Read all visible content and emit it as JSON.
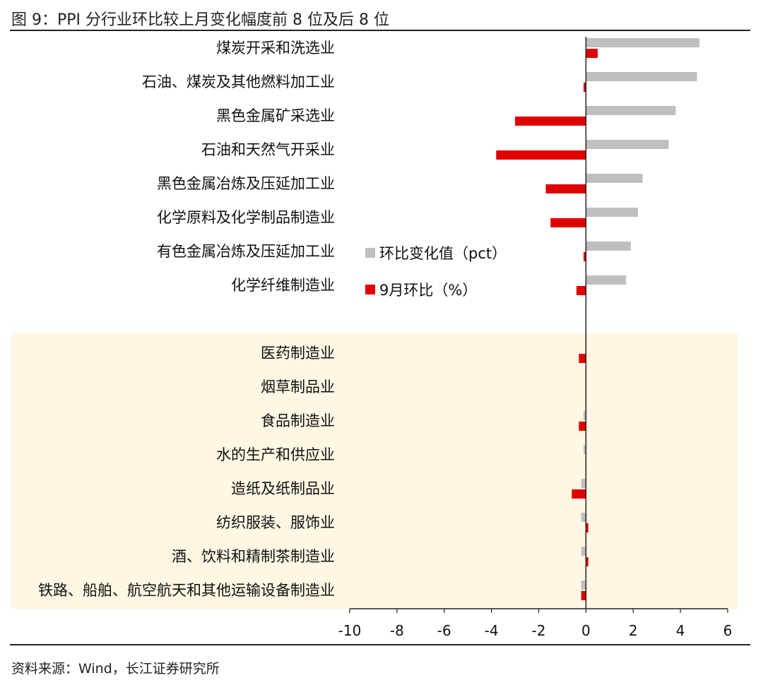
{
  "figure": {
    "title": "图 9：PPI 分行业环比较上月变化幅度前 8 位及后 8 位",
    "source": "资料来源：Wind，长江证券研究所"
  },
  "colors": {
    "series_change": "#bfbfbf",
    "series_mom": "#e00000",
    "highlight_bg": "#fff6e3",
    "axis": "#222222"
  },
  "chart_data": {
    "type": "bar",
    "orientation": "horizontal",
    "title": "PPI 分行业环比较上月变化幅度前 8 位及后 8 位",
    "categories": [
      "煤炭开采和洗选业",
      "石油、煤炭及其他燃料加工业",
      "黑色金属矿采选业",
      "石油和天然气开采业",
      "黑色金属冶炼及压延加工业",
      "化学原料及化学制品制造业",
      "有色金属冶炼及压延加工业",
      "化学纤维制造业",
      "医药制造业",
      "烟草制品业",
      "食品制造业",
      "水的生产和供应业",
      "造纸及纸制品业",
      "纺织服装、服饰业",
      "酒、饮料和精制茶制造业",
      "铁路、船舶、航空航天和其他运输设备制造业"
    ],
    "series": [
      {
        "name": "环比变化值（pct）",
        "values": [
          4.8,
          4.7,
          3.8,
          3.5,
          2.4,
          2.2,
          1.9,
          1.7,
          0.0,
          0.0,
          -0.1,
          -0.1,
          -0.2,
          -0.2,
          -0.2,
          -0.2
        ]
      },
      {
        "name": "9月环比（%）",
        "values": [
          0.5,
          -0.1,
          -3.0,
          -3.8,
          -1.7,
          -1.5,
          -0.1,
          -0.4,
          -0.3,
          0.0,
          -0.3,
          0.0,
          -0.6,
          0.1,
          0.1,
          -0.2
        ]
      }
    ],
    "xlim": [
      -10,
      6
    ],
    "xticks": [
      "-10",
      "-8",
      "-6",
      "-4",
      "-2",
      "0",
      "2",
      "4",
      "6"
    ],
    "xlabel": "",
    "ylabel": "",
    "legend": "inside, middle",
    "grid": false,
    "highlighted_group": "bottom 8 categories"
  }
}
